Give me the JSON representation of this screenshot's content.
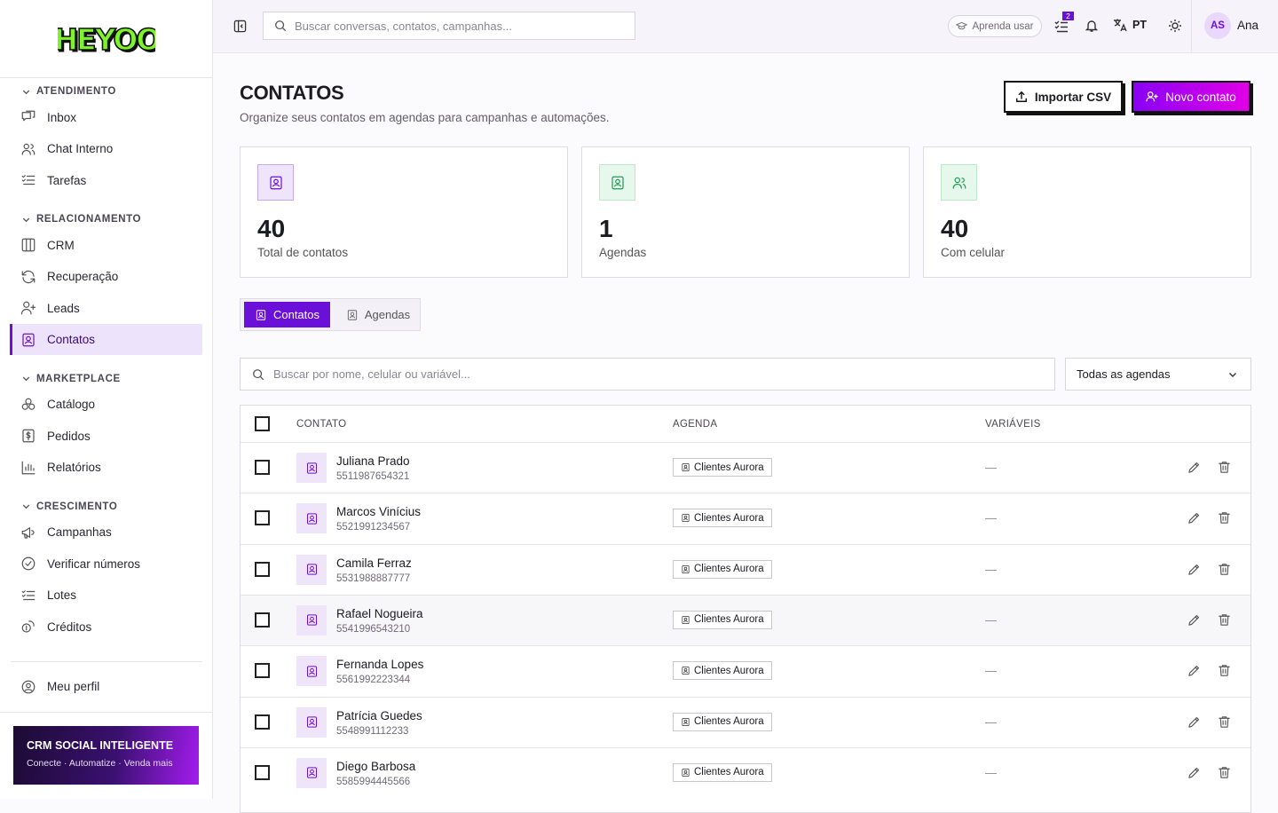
{
  "logo": "HEYOO",
  "sidebar": {
    "sections": [
      {
        "title": "ATENDIMENTO",
        "items": [
          {
            "label": "Inbox",
            "icon": "inbox"
          },
          {
            "label": "Chat Interno",
            "icon": "users"
          },
          {
            "label": "Tarefas",
            "icon": "list"
          }
        ]
      },
      {
        "title": "RELACIONAMENTO",
        "items": [
          {
            "label": "CRM",
            "icon": "columns"
          },
          {
            "label": "Recuperação",
            "icon": "refresh"
          },
          {
            "label": "Leads",
            "icon": "user-plus"
          },
          {
            "label": "Contatos",
            "icon": "contact",
            "active": true
          }
        ]
      },
      {
        "title": "MARKETPLACE",
        "items": [
          {
            "label": "Catálogo",
            "icon": "grid"
          },
          {
            "label": "Pedidos",
            "icon": "dollar"
          },
          {
            "label": "Relatórios",
            "icon": "chart"
          }
        ]
      },
      {
        "title": "CRESCIMENTO",
        "items": [
          {
            "label": "Campanhas",
            "icon": "megaphone"
          },
          {
            "label": "Verificar números",
            "icon": "check"
          },
          {
            "label": "Lotes",
            "icon": "list"
          },
          {
            "label": "Créditos",
            "icon": "coins"
          }
        ]
      }
    ],
    "profile": "Meu perfil",
    "promo": {
      "title": "CRM SOCIAL INTELIGENTE",
      "subtitle": "Conecte · Automatize · Venda mais"
    }
  },
  "topbar": {
    "search_placeholder": "Buscar conversas, contatos, campanhas...",
    "learn": "Aprenda usar",
    "tasks_badge": 2,
    "language": "PT",
    "avatar_initials": "AS",
    "user": "Ana"
  },
  "page": {
    "title": "CONTATOS",
    "subtitle": "Organize seus contatos em agendas para campanhas e automações.",
    "import_button": "Importar CSV",
    "new_button": "Novo contato"
  },
  "stats": [
    {
      "value": 40,
      "label": "Total de contatos",
      "tone": "purple"
    },
    {
      "value": 1,
      "label": "Agendas",
      "tone": "green"
    },
    {
      "value": 40,
      "label": "Com celular",
      "tone": "green"
    }
  ],
  "tabs": [
    {
      "label": "Contatos",
      "active": true
    },
    {
      "label": "Agendas"
    }
  ],
  "filter": {
    "search_placeholder": "Buscar por nome, celular ou variável...",
    "agenda_select": "Todas as agendas"
  },
  "table": {
    "columns": [
      "CONTATO",
      "AGENDA",
      "VARIÁVEIS"
    ],
    "rows": [
      {
        "name": "Juliana Prado",
        "phone": "5511987654321",
        "agenda": "Clientes Aurora",
        "variables": "—"
      },
      {
        "name": "Marcos Vinícius",
        "phone": "5521991234567",
        "agenda": "Clientes Aurora",
        "variables": "—"
      },
      {
        "name": "Camila Ferraz",
        "phone": "5531988887777",
        "agenda": "Clientes Aurora",
        "variables": "—"
      },
      {
        "name": "Rafael Nogueira",
        "phone": "5541996543210",
        "agenda": "Clientes Aurora",
        "variables": "—",
        "hover": true
      },
      {
        "name": "Fernanda Lopes",
        "phone": "5561992223344",
        "agenda": "Clientes Aurora",
        "variables": "—"
      },
      {
        "name": "Patrícia Guedes",
        "phone": "5548991112233",
        "agenda": "Clientes Aurora",
        "variables": "—"
      },
      {
        "name": "Diego Barbosa",
        "phone": "5585994445566",
        "agenda": "Clientes Aurora",
        "variables": "—"
      }
    ]
  }
}
